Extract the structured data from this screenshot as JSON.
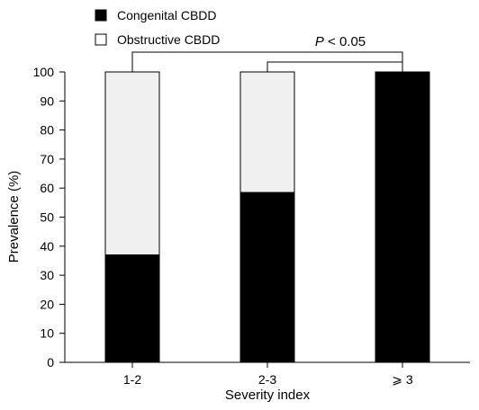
{
  "chart_data": {
    "type": "bar",
    "stacked": true,
    "categories": [
      "1-2",
      "2-3",
      "⩾ 3"
    ],
    "series": [
      {
        "name": "Congenital CBDD",
        "color": "#000000",
        "values": [
          37,
          58.5,
          100
        ]
      },
      {
        "name": "Obstructive CBDD",
        "color": "#f0f0f0",
        "values": [
          63,
          41.5,
          0
        ]
      }
    ],
    "xlabel": "Severity index",
    "ylabel": "Prevalence (%)",
    "ylim": [
      0,
      100
    ],
    "yticks": [
      0,
      10,
      20,
      30,
      40,
      50,
      60,
      70,
      80,
      90,
      100
    ],
    "legend_position": "top-left",
    "grid": false,
    "annotations": [
      {
        "type": "significance-bracket",
        "text_prefix": "P",
        "text_suffix": " < 0.05",
        "outer_pair": [
          "1-2",
          "⩾ 3"
        ],
        "inner_pair": [
          "2-3",
          "⩾ 3"
        ]
      }
    ]
  }
}
